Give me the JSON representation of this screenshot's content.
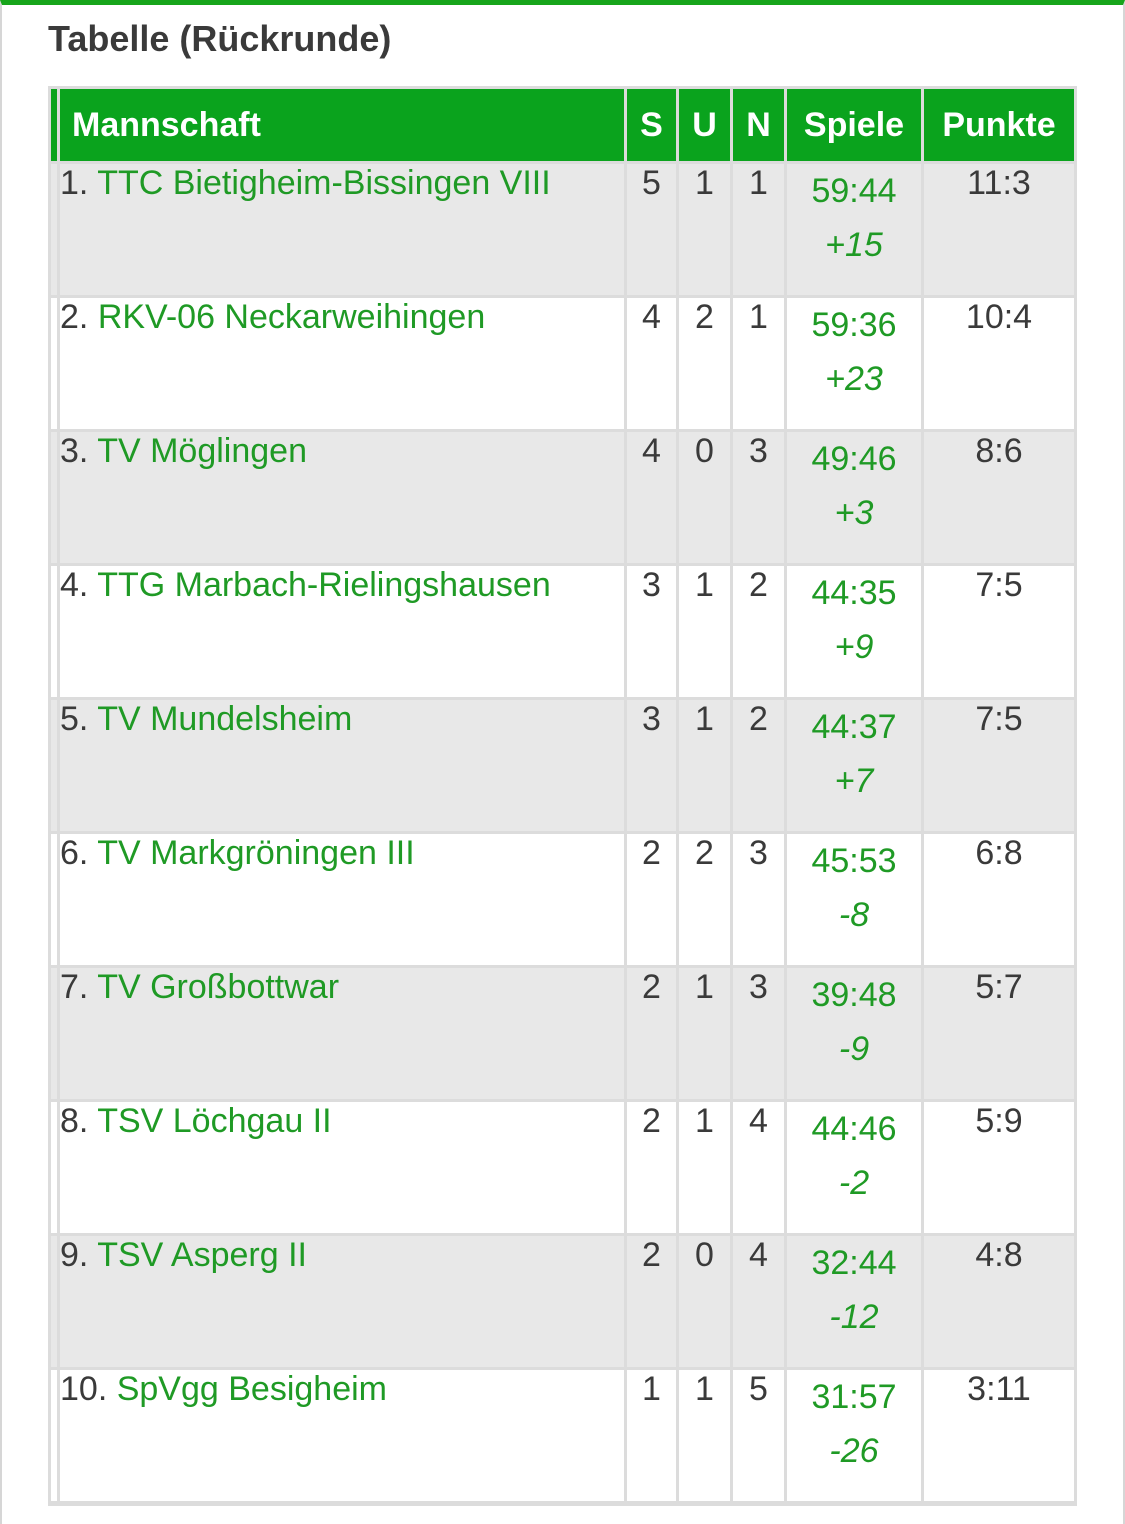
{
  "title": "Tabelle (Rückrunde)",
  "columns": {
    "team": "Mannschaft",
    "wins": "S",
    "draws": "U",
    "losses": "N",
    "games": "Spiele",
    "points": "Punkte"
  },
  "colors": {
    "header_green": "#0aa31d",
    "link_green": "#1f9a25",
    "text": "#3a3a3a",
    "row_alt": "#e8e8e8"
  },
  "rows": [
    {
      "rank": "1.",
      "team": "TTC Bietigheim-Bissingen VIII",
      "wins": "5",
      "draws": "1",
      "losses": "1",
      "games": "59:44",
      "diff": "+15",
      "points": "11:3"
    },
    {
      "rank": "2.",
      "team": "RKV-06 Neckarweihingen",
      "wins": "4",
      "draws": "2",
      "losses": "1",
      "games": "59:36",
      "diff": "+23",
      "points": "10:4"
    },
    {
      "rank": "3.",
      "team": "TV Möglingen",
      "wins": "4",
      "draws": "0",
      "losses": "3",
      "games": "49:46",
      "diff": "+3",
      "points": "8:6"
    },
    {
      "rank": "4.",
      "team": "TTG Marbach-Rielingshausen",
      "wins": "3",
      "draws": "1",
      "losses": "2",
      "games": "44:35",
      "diff": "+9",
      "points": "7:5"
    },
    {
      "rank": "5.",
      "team": "TV Mundelsheim",
      "wins": "3",
      "draws": "1",
      "losses": "2",
      "games": "44:37",
      "diff": "+7",
      "points": "7:5"
    },
    {
      "rank": "6.",
      "team": "TV Markgröningen III",
      "wins": "2",
      "draws": "2",
      "losses": "3",
      "games": "45:53",
      "diff": "-8",
      "points": "6:8"
    },
    {
      "rank": "7.",
      "team": "TV Großbottwar",
      "wins": "2",
      "draws": "1",
      "losses": "3",
      "games": "39:48",
      "diff": "-9",
      "points": "5:7"
    },
    {
      "rank": "8.",
      "team": "TSV Löchgau II",
      "wins": "2",
      "draws": "1",
      "losses": "4",
      "games": "44:46",
      "diff": "-2",
      "points": "5:9"
    },
    {
      "rank": "9.",
      "team": "TSV Asperg II",
      "wins": "2",
      "draws": "0",
      "losses": "4",
      "games": "32:44",
      "diff": "-12",
      "points": "4:8"
    },
    {
      "rank": "10.",
      "team": "SpVgg Besigheim",
      "wins": "1",
      "draws": "1",
      "losses": "5",
      "games": "31:57",
      "diff": "-26",
      "points": "3:11"
    }
  ]
}
